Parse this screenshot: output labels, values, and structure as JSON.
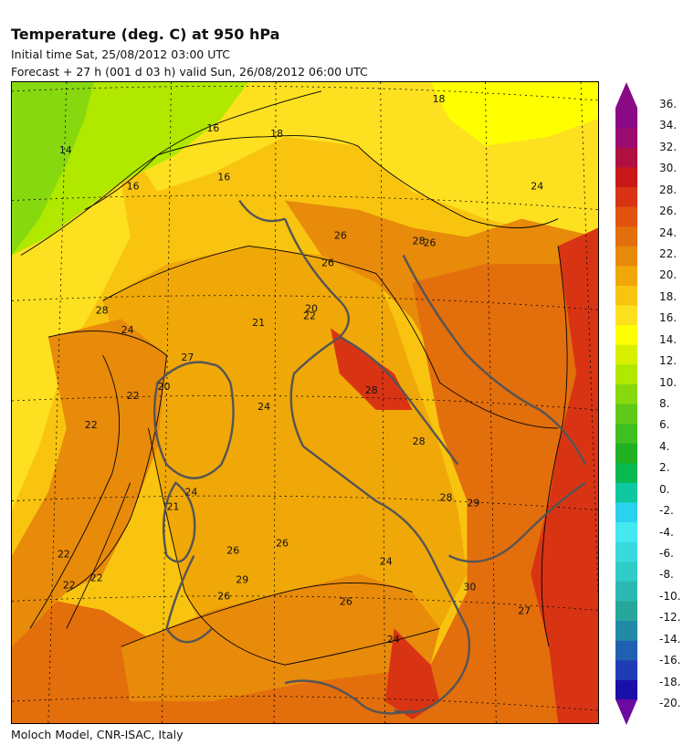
{
  "header": {
    "title": "Temperature (deg. C) at 950 hPa",
    "initial_time": "Initial time  Sat, 25/08/2012  03:00 UTC",
    "forecast": "Forecast  +  27 h  (001 d 03 h)  valid Sun, 26/08/2012 06:00 UTC"
  },
  "footer": {
    "credit": "Moloch Model, CNR-ISAC, Italy"
  },
  "colorbar": {
    "ticks": [
      "36.",
      "34.",
      "32.",
      "30.",
      "28.",
      "26.",
      "24.",
      "22.",
      "20.",
      "18.",
      "16.",
      "14.",
      "12.",
      "10.",
      "8.",
      "6.",
      "4.",
      "2.",
      "0.",
      "-2.",
      "-4.",
      "-6.",
      "-8.",
      "-10.",
      "-12.",
      "-14.",
      "-16.",
      "-18.",
      "-20."
    ],
    "colors": [
      "#1a10a8",
      "#1e3cb4",
      "#2060b0",
      "#218aa6",
      "#27a69c",
      "#2cb8b2",
      "#30ccc8",
      "#38dade",
      "#44e8ee",
      "#2cd0f0",
      "#10c8a0",
      "#08b850",
      "#20b020",
      "#40c020",
      "#60c818",
      "#88d810",
      "#b0e800",
      "#d8f000",
      "#ffff00",
      "#fde020",
      "#f8c410",
      "#f0a808",
      "#e88a0a",
      "#e36e0c",
      "#e0520e",
      "#d83414",
      "#c81818",
      "#b01040",
      "#9a0c70",
      "#8a0a86"
    ],
    "arrow_top": "#8a0a86",
    "arrow_bottom": "#6a0aa0"
  },
  "map_labels": [
    "28",
    "18",
    "16",
    "14",
    "16",
    "16",
    "18",
    "24",
    "26",
    "26",
    "26",
    "28",
    "20",
    "21",
    "22",
    "22",
    "24",
    "27",
    "20",
    "22",
    "24",
    "24",
    "22",
    "26",
    "21",
    "22",
    "22",
    "24",
    "26",
    "26",
    "26",
    "28",
    "28",
    "29",
    "30",
    "24",
    "27",
    "28",
    "29"
  ],
  "map_colors": {
    "green_14": "#88d810",
    "yellowgreen_16": "#b0e800",
    "yellow_18": "#ffff00",
    "yellow_20": "#fde020",
    "amber_22": "#f8c410",
    "orange_24": "#f0a808",
    "orange_26": "#e88a0a",
    "darkorange_28": "#e36e0c",
    "red_30": "#d83414",
    "coast": "#555555"
  }
}
